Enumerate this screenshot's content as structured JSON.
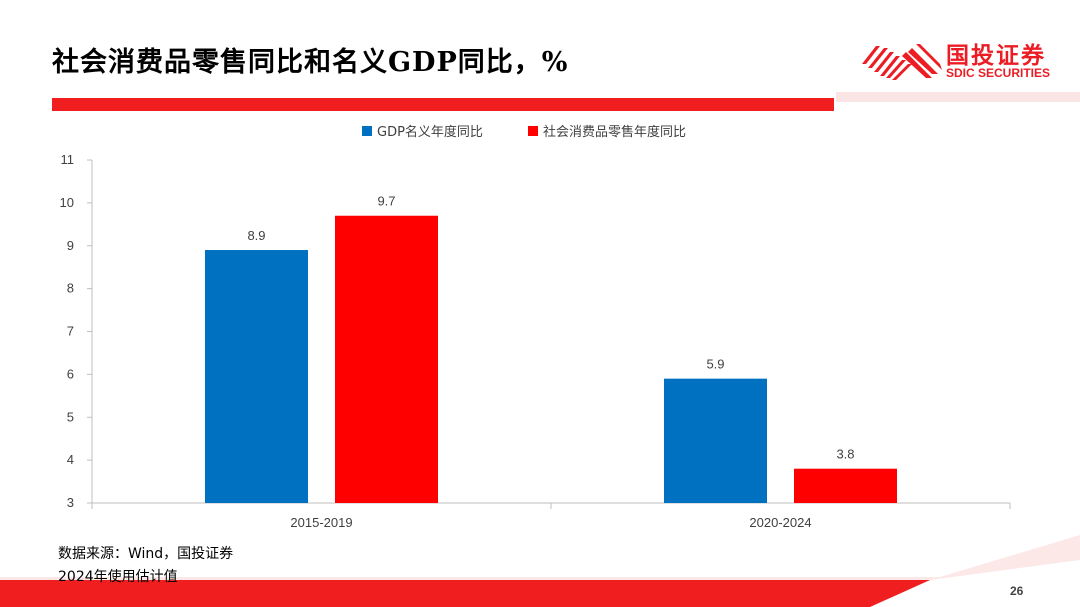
{
  "header": {
    "title": "社会消费品零售同比和名义GDP同比，%",
    "logo_cn": "国投证券",
    "logo_en": "SDIC SECURITIES"
  },
  "colors": {
    "gdp": "#0070c0",
    "retail": "#ff0000",
    "accent": "#f01e1e"
  },
  "chart_data": {
    "type": "bar",
    "categories": [
      "2015-2019",
      "2020-2024"
    ],
    "series": [
      {
        "name": "GDP名义年度同比",
        "values": [
          8.9,
          5.9
        ]
      },
      {
        "name": "社会消费品零售年度同比",
        "values": [
          9.7,
          3.8
        ]
      }
    ],
    "ylim": [
      3,
      11
    ],
    "yticks": [
      3,
      4,
      5,
      6,
      7,
      8,
      9,
      10,
      11
    ],
    "legend": "top",
    "grid": false
  },
  "footer": {
    "source": "数据来源：Wind，国投证券",
    "note": "2024年使用估计值",
    "page": "26"
  }
}
